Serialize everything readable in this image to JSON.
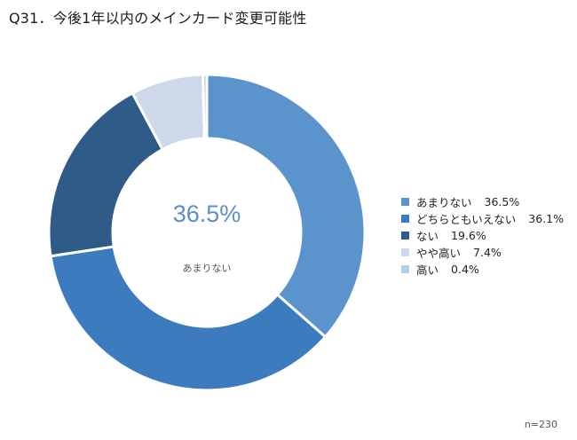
{
  "title": "Q31．今後1年以内のメインカード変更可能性",
  "center": {
    "value": "36.5%",
    "label": "あまりない"
  },
  "note": "n=230",
  "chart_data": {
    "type": "pie",
    "variant": "donut",
    "title": "Q31．今後1年以内のメインカード変更可能性",
    "legend_position": "right",
    "categories": [
      "あまりない",
      "どちらともいえない",
      "ない",
      "やや高い",
      "高い"
    ],
    "values": [
      36.5,
      36.1,
      19.6,
      7.4,
      0.4
    ],
    "value_labels": [
      "36.5%",
      "36.1%",
      "19.6%",
      "7.4%",
      "0.4%"
    ],
    "colors": [
      "#5b93cd",
      "#3d7bbf",
      "#2e5b87",
      "#cdd9ea",
      "#b6cde6"
    ]
  }
}
